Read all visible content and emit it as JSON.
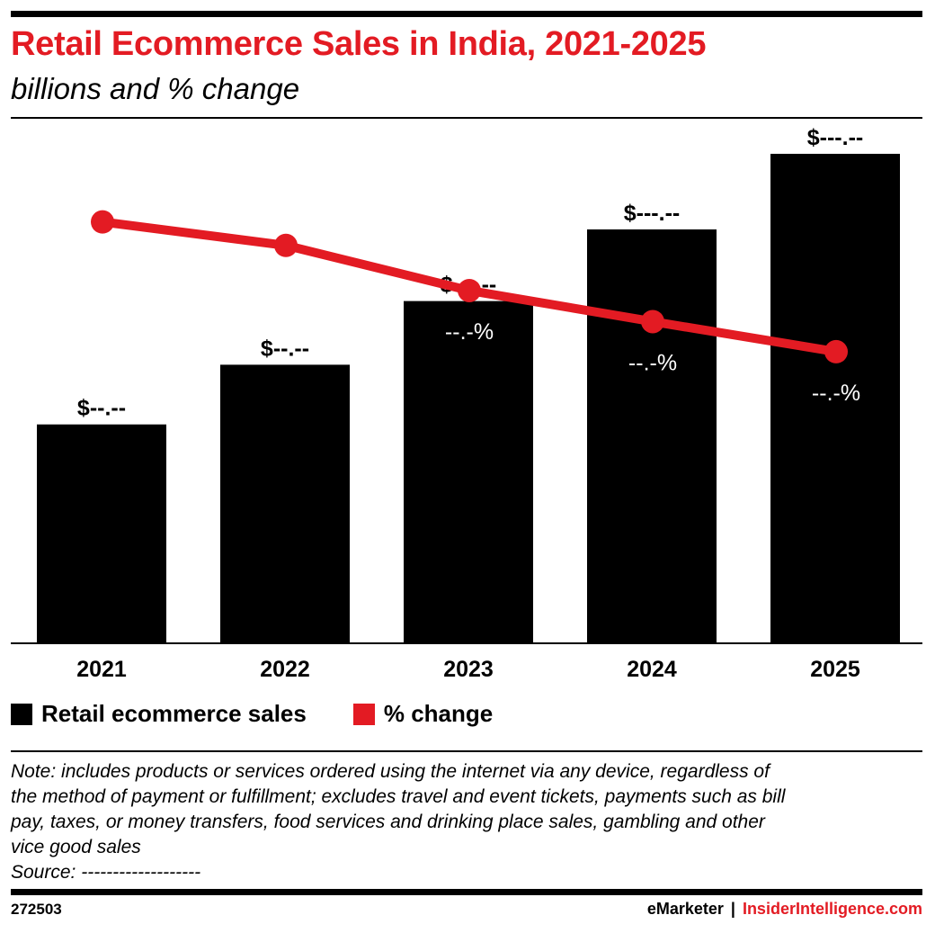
{
  "header": {
    "title": "Retail Ecommerce Sales in India, 2021-2025",
    "subtitle": "billions and % change"
  },
  "colors": {
    "accent": "#e31b23",
    "bars": "#000000",
    "line": "#e31b23",
    "text": "#000000"
  },
  "chart_data": {
    "type": "bar",
    "categories": [
      "2021",
      "2022",
      "2023",
      "2024",
      "2025"
    ],
    "series": [
      {
        "name": "Retail ecommerce sales",
        "type": "bar",
        "values": [
          55,
          70,
          86,
          104,
          123
        ],
        "labels": [
          "$--.--",
          "$--.--",
          "$---.--",
          "$---.--",
          "$---.--"
        ]
      },
      {
        "name": "% change",
        "type": "line",
        "values": [
          24.8,
          22.3,
          17.5,
          14.2,
          11.0
        ],
        "labels": [
          "--.-%",
          "--.-%",
          "--.-%",
          "--.-%",
          "--.-%"
        ]
      }
    ],
    "ylim": [
      0,
      130
    ],
    "line_ylim": [
      -20,
      35
    ],
    "title": "",
    "xlabel": "",
    "ylabel": "",
    "grid": false,
    "legend": "bottom-left"
  },
  "legend": [
    {
      "label": "Retail ecommerce sales",
      "color": "#000000"
    },
    {
      "label": "% change",
      "color": "#e31b23"
    }
  ],
  "note": {
    "lines": [
      "Note: includes products or services ordered using the internet via any device, regardless of",
      "the method of payment or fulfillment; excludes travel and event tickets, payments such as bill",
      "pay, taxes, or money transfers, food services and drinking place sales, gambling and other",
      "vice good sales"
    ],
    "source": "Source: -------------------"
  },
  "footer": {
    "id": "272503",
    "brand1": "eMarketer",
    "separator": "|",
    "brand2": "InsiderIntelligence.com"
  }
}
